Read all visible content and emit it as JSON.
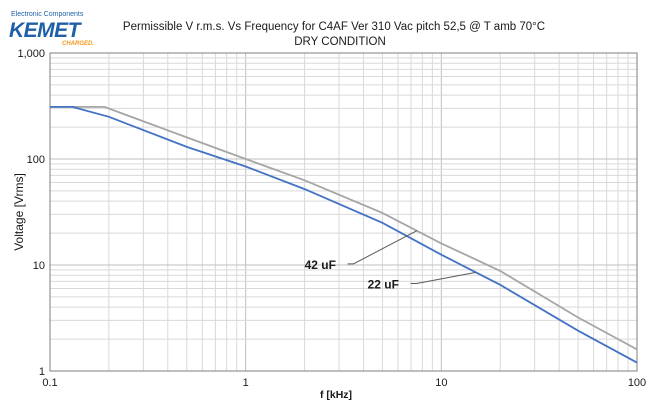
{
  "logo": {
    "top_text": "Electronic Components",
    "main_text": "KEMET",
    "tagline": "CHARGED."
  },
  "colors": {
    "series_42uF": "#a6a6a6",
    "series_22uF": "#4472c4",
    "logo_blue": "#1f5fa8",
    "logo_orange": "#f39a1e"
  },
  "chart_data": {
    "type": "line",
    "title": "Permissible V r.m.s. Vs Frequency  for C4AF Ver 310 Vac pitch 52,5 @ T amb 70°C",
    "subtitle": "DRY CONDITION",
    "xlabel": "f [kHz]",
    "ylabel": "Voltage [Vrms]",
    "x_scale": "log",
    "y_scale": "log",
    "xlim": [
      0.1,
      100
    ],
    "ylim": [
      1,
      1000
    ],
    "x_ticks": [
      {
        "value": 0.1,
        "label": "0.1"
      },
      {
        "value": 1,
        "label": "1"
      },
      {
        "value": 10,
        "label": "10"
      },
      {
        "value": 100,
        "label": "100"
      }
    ],
    "y_ticks": [
      {
        "value": 1,
        "label": "1"
      },
      {
        "value": 10,
        "label": "10"
      },
      {
        "value": 100,
        "label": "100"
      },
      {
        "value": 1000,
        "label": "1,000"
      }
    ],
    "grid": true,
    "series": [
      {
        "name": "42 uF",
        "color": "#a6a6a6",
        "x": [
          0.1,
          0.19,
          0.5,
          1,
          2,
          5,
          10,
          20,
          50,
          100
        ],
        "y": [
          310,
          310,
          160,
          100,
          63,
          31,
          16,
          8.8,
          3.2,
          1.6
        ]
      },
      {
        "name": "22 uF",
        "color": "#4472c4",
        "x": [
          0.1,
          0.13,
          0.2,
          0.5,
          1,
          2,
          5,
          10,
          20,
          50,
          100
        ],
        "y": [
          310,
          310,
          250,
          130,
          85,
          52,
          25,
          12.5,
          6.5,
          2.4,
          1.2
        ]
      }
    ],
    "annotations": [
      {
        "text": "42 uF",
        "series": 0,
        "at_x": 7.5,
        "label_x": 2.0,
        "label_y": 9.2
      },
      {
        "text": "22 uF",
        "series": 1,
        "at_x": 15,
        "label_x": 4.2,
        "label_y": 6.0
      }
    ]
  }
}
